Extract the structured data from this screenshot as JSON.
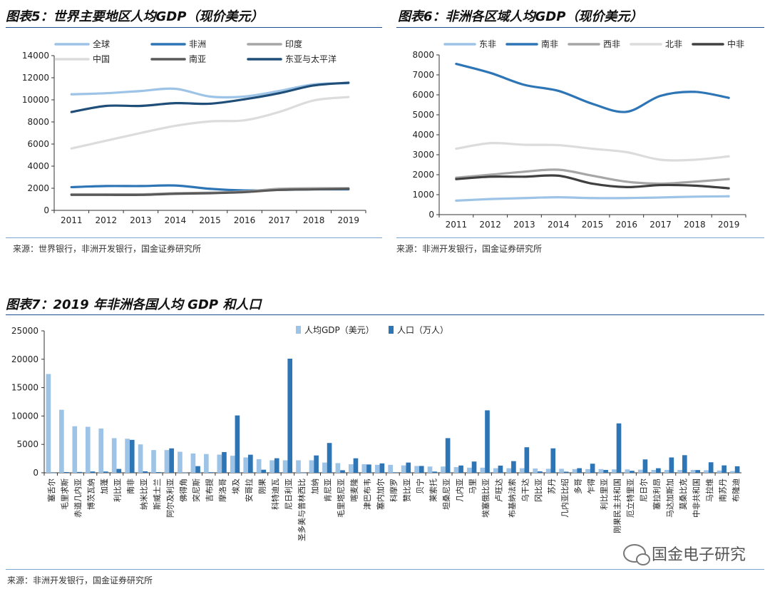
{
  "chart5": {
    "title": "图表5：世界主要地区人均GDP（现价美元）",
    "source": "来源：世界银行，非洲开发银行，国金证券研究所"
  },
  "chart6": {
    "title": "图表6：非洲各区域人均GDP（现价美元）",
    "source": "来源：非洲开发银行，国金证券研究所"
  },
  "chart7": {
    "title": "图表7：2019 年非洲各国人均 GDP 和人口",
    "source": "来源：非洲开发银行，国金证券研究所"
  },
  "watermark": "国金电子研究",
  "chart_data": [
    {
      "id": "chart5",
      "type": "line",
      "title": "图表5：世界主要地区人均GDP（现价美元）",
      "x": [
        "2011",
        "2012",
        "2013",
        "2014",
        "2015",
        "2016",
        "2017",
        "2018",
        "2019"
      ],
      "ylim": [
        0,
        14000
      ],
      "yticks": [
        0,
        2000,
        4000,
        6000,
        8000,
        10000,
        12000,
        14000
      ],
      "legend": "top",
      "series": [
        {
          "name": "全球",
          "color": "#9dc3e6",
          "values": [
            10500,
            10600,
            10800,
            11000,
            10300,
            10300,
            10800,
            11400,
            11500
          ]
        },
        {
          "name": "非洲",
          "color": "#2e75b6",
          "values": [
            2100,
            2200,
            2200,
            2250,
            1950,
            1800,
            1850,
            1900,
            1900
          ]
        },
        {
          "name": "印度",
          "color": "#a6a6a6",
          "values": [
            1450,
            1450,
            1450,
            1550,
            1600,
            1700,
            1950,
            2000,
            2000
          ]
        },
        {
          "name": "中国",
          "color": "#dcdcdc",
          "values": [
            5600,
            6300,
            7000,
            7650,
            8050,
            8150,
            8900,
            9950,
            10250
          ]
        },
        {
          "name": "南亚",
          "color": "#595959",
          "values": [
            1400,
            1400,
            1400,
            1500,
            1550,
            1650,
            1850,
            1900,
            1950
          ]
        },
        {
          "name": "东亚与太平洋",
          "color": "#1f4e79",
          "values": [
            8900,
            9450,
            9450,
            9700,
            9650,
            10050,
            10600,
            11300,
            11550
          ]
        }
      ]
    },
    {
      "id": "chart6",
      "type": "line",
      "title": "图表6：非洲各区域人均GDP（现价美元）",
      "x": [
        "2011",
        "2012",
        "2013",
        "2014",
        "2015",
        "2016",
        "2017",
        "2018",
        "2019"
      ],
      "ylim": [
        0,
        8000
      ],
      "yticks": [
        0,
        1000,
        2000,
        3000,
        4000,
        5000,
        6000,
        7000,
        8000
      ],
      "legend": "top",
      "series": [
        {
          "name": "东非",
          "color": "#9dc3e6",
          "values": [
            700,
            780,
            830,
            870,
            830,
            830,
            860,
            900,
            920
          ]
        },
        {
          "name": "南非",
          "color": "#2e75b6",
          "values": [
            7550,
            7100,
            6500,
            6200,
            5550,
            5150,
            5950,
            6150,
            5850
          ]
        },
        {
          "name": "西非",
          "color": "#a6a6a6",
          "values": [
            1850,
            2000,
            2150,
            2250,
            1950,
            1650,
            1550,
            1650,
            1780
          ]
        },
        {
          "name": "北非",
          "color": "#dcdcdc",
          "values": [
            3300,
            3580,
            3500,
            3480,
            3300,
            3130,
            2750,
            2750,
            2920
          ]
        },
        {
          "name": "中非",
          "color": "#404040",
          "values": [
            1780,
            1900,
            1900,
            1950,
            1550,
            1380,
            1480,
            1450,
            1320
          ]
        }
      ]
    },
    {
      "id": "chart7",
      "type": "bar",
      "title": "图表7：2019 年非洲各国人均 GDP 和人口",
      "ylim": [
        0,
        25000
      ],
      "yticks": [
        0,
        5000,
        10000,
        15000,
        20000,
        25000
      ],
      "legend": "top-center",
      "categories": [
        "塞舌尔",
        "毛里求斯",
        "赤道几内亚",
        "博茨瓦纳",
        "加蓬",
        "利比亚",
        "南非",
        "纳米比亚",
        "斯威士兰",
        "阿尔及利亚",
        "佛得角",
        "突尼斯",
        "吉布提",
        "摩洛哥",
        "埃及",
        "安哥拉",
        "刚果",
        "科特迪瓦",
        "尼日利亚",
        "圣多美与普林西比",
        "加纳",
        "肯尼亚",
        "毛里塔尼亚",
        "喀麦隆",
        "津巴布韦",
        "塞内加尔",
        "科摩罗",
        "赞比亚",
        "贝宁",
        "莱索托",
        "坦桑尼亚",
        "几内亚",
        "马里",
        "埃塞俄比亚",
        "卢旺达",
        "布基纳法索",
        "乌干达",
        "冈比亚",
        "苏丹",
        "几内亚比绍",
        "多哥",
        "乍得",
        "利比里亚",
        "刚果民主共和国",
        "厄立特里亚",
        "尼日尔",
        "塞拉利昂",
        "马达加斯加",
        "莫桑比克",
        "中非共和国",
        "马拉维",
        "南苏丹",
        "布隆迪"
      ],
      "series": [
        {
          "name": "人均GDP（美元）",
          "color": "#9dc3e6",
          "values": [
            17400,
            11100,
            8200,
            8100,
            7800,
            6100,
            6000,
            5000,
            4000,
            4000,
            3700,
            3400,
            3300,
            3200,
            3000,
            2700,
            2400,
            2200,
            2200,
            2200,
            2200,
            1800,
            1700,
            1500,
            1500,
            1400,
            1400,
            1300,
            1200,
            1100,
            1100,
            1000,
            900,
            900,
            800,
            800,
            800,
            750,
            700,
            700,
            650,
            650,
            650,
            600,
            600,
            550,
            500,
            500,
            500,
            500,
            450,
            400,
            300
          ]
        },
        {
          "name": "人口（万人）",
          "color": "#2e75b6",
          "values": [
            10,
            130,
            140,
            230,
            220,
            680,
            5800,
            250,
            120,
            4300,
            55,
            1170,
            100,
            3650,
            10100,
            3180,
            540,
            2560,
            20100,
            22,
            3050,
            5250,
            450,
            2550,
            1460,
            1650,
            85,
            1800,
            1200,
            210,
            6100,
            1280,
            1980,
            11000,
            1260,
            2050,
            4500,
            240,
            4300,
            190,
            810,
            1600,
            500,
            8700,
            350,
            2350,
            800,
            2700,
            3100,
            480,
            1850,
            1300,
            1150
          ]
        }
      ]
    }
  ]
}
